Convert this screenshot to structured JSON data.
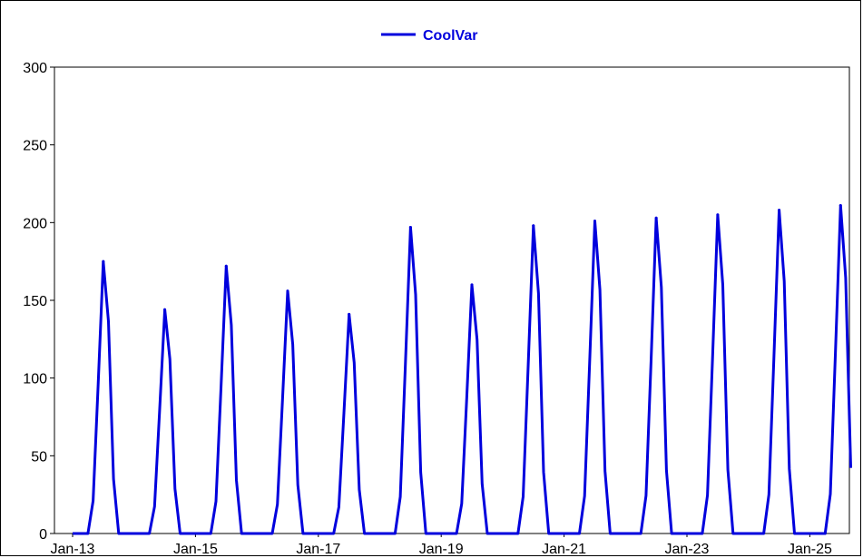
{
  "legend": {
    "label": "CoolVar",
    "color": "#0000dd"
  },
  "colors": {
    "series": "#0000dd",
    "axis": "#000000",
    "background": "#ffffff"
  },
  "chart_data": {
    "type": "line",
    "title": "",
    "xlabel": "",
    "ylabel": "",
    "ylim": [
      0,
      300
    ],
    "xlim": [
      "Jan-13",
      "Jan-25"
    ],
    "grid": false,
    "legend_position": "top-center",
    "y_ticks": [
      "0",
      "50",
      "100",
      "150",
      "200",
      "250",
      "300"
    ],
    "x_ticks": [
      "Jan-13",
      "Jan-15",
      "Jan-17",
      "Jan-19",
      "Jan-21",
      "Jan-23",
      "Jan-25"
    ],
    "series": [
      {
        "name": "CoolVar",
        "peaks": [
          {
            "year": 2013,
            "peak": 175
          },
          {
            "year": 2014,
            "peak": 144
          },
          {
            "year": 2015,
            "peak": 172
          },
          {
            "year": 2016,
            "peak": 156
          },
          {
            "year": 2017,
            "peak": 141
          },
          {
            "year": 2018,
            "peak": 197
          },
          {
            "year": 2019,
            "peak": 160
          },
          {
            "year": 2020,
            "peak": 198
          },
          {
            "year": 2021,
            "peak": 201
          },
          {
            "year": 2022,
            "peak": 203
          },
          {
            "year": 2023,
            "peak": 205
          },
          {
            "year": 2024,
            "peak": 208
          },
          {
            "year": 2025,
            "peak": 211
          }
        ]
      }
    ]
  }
}
